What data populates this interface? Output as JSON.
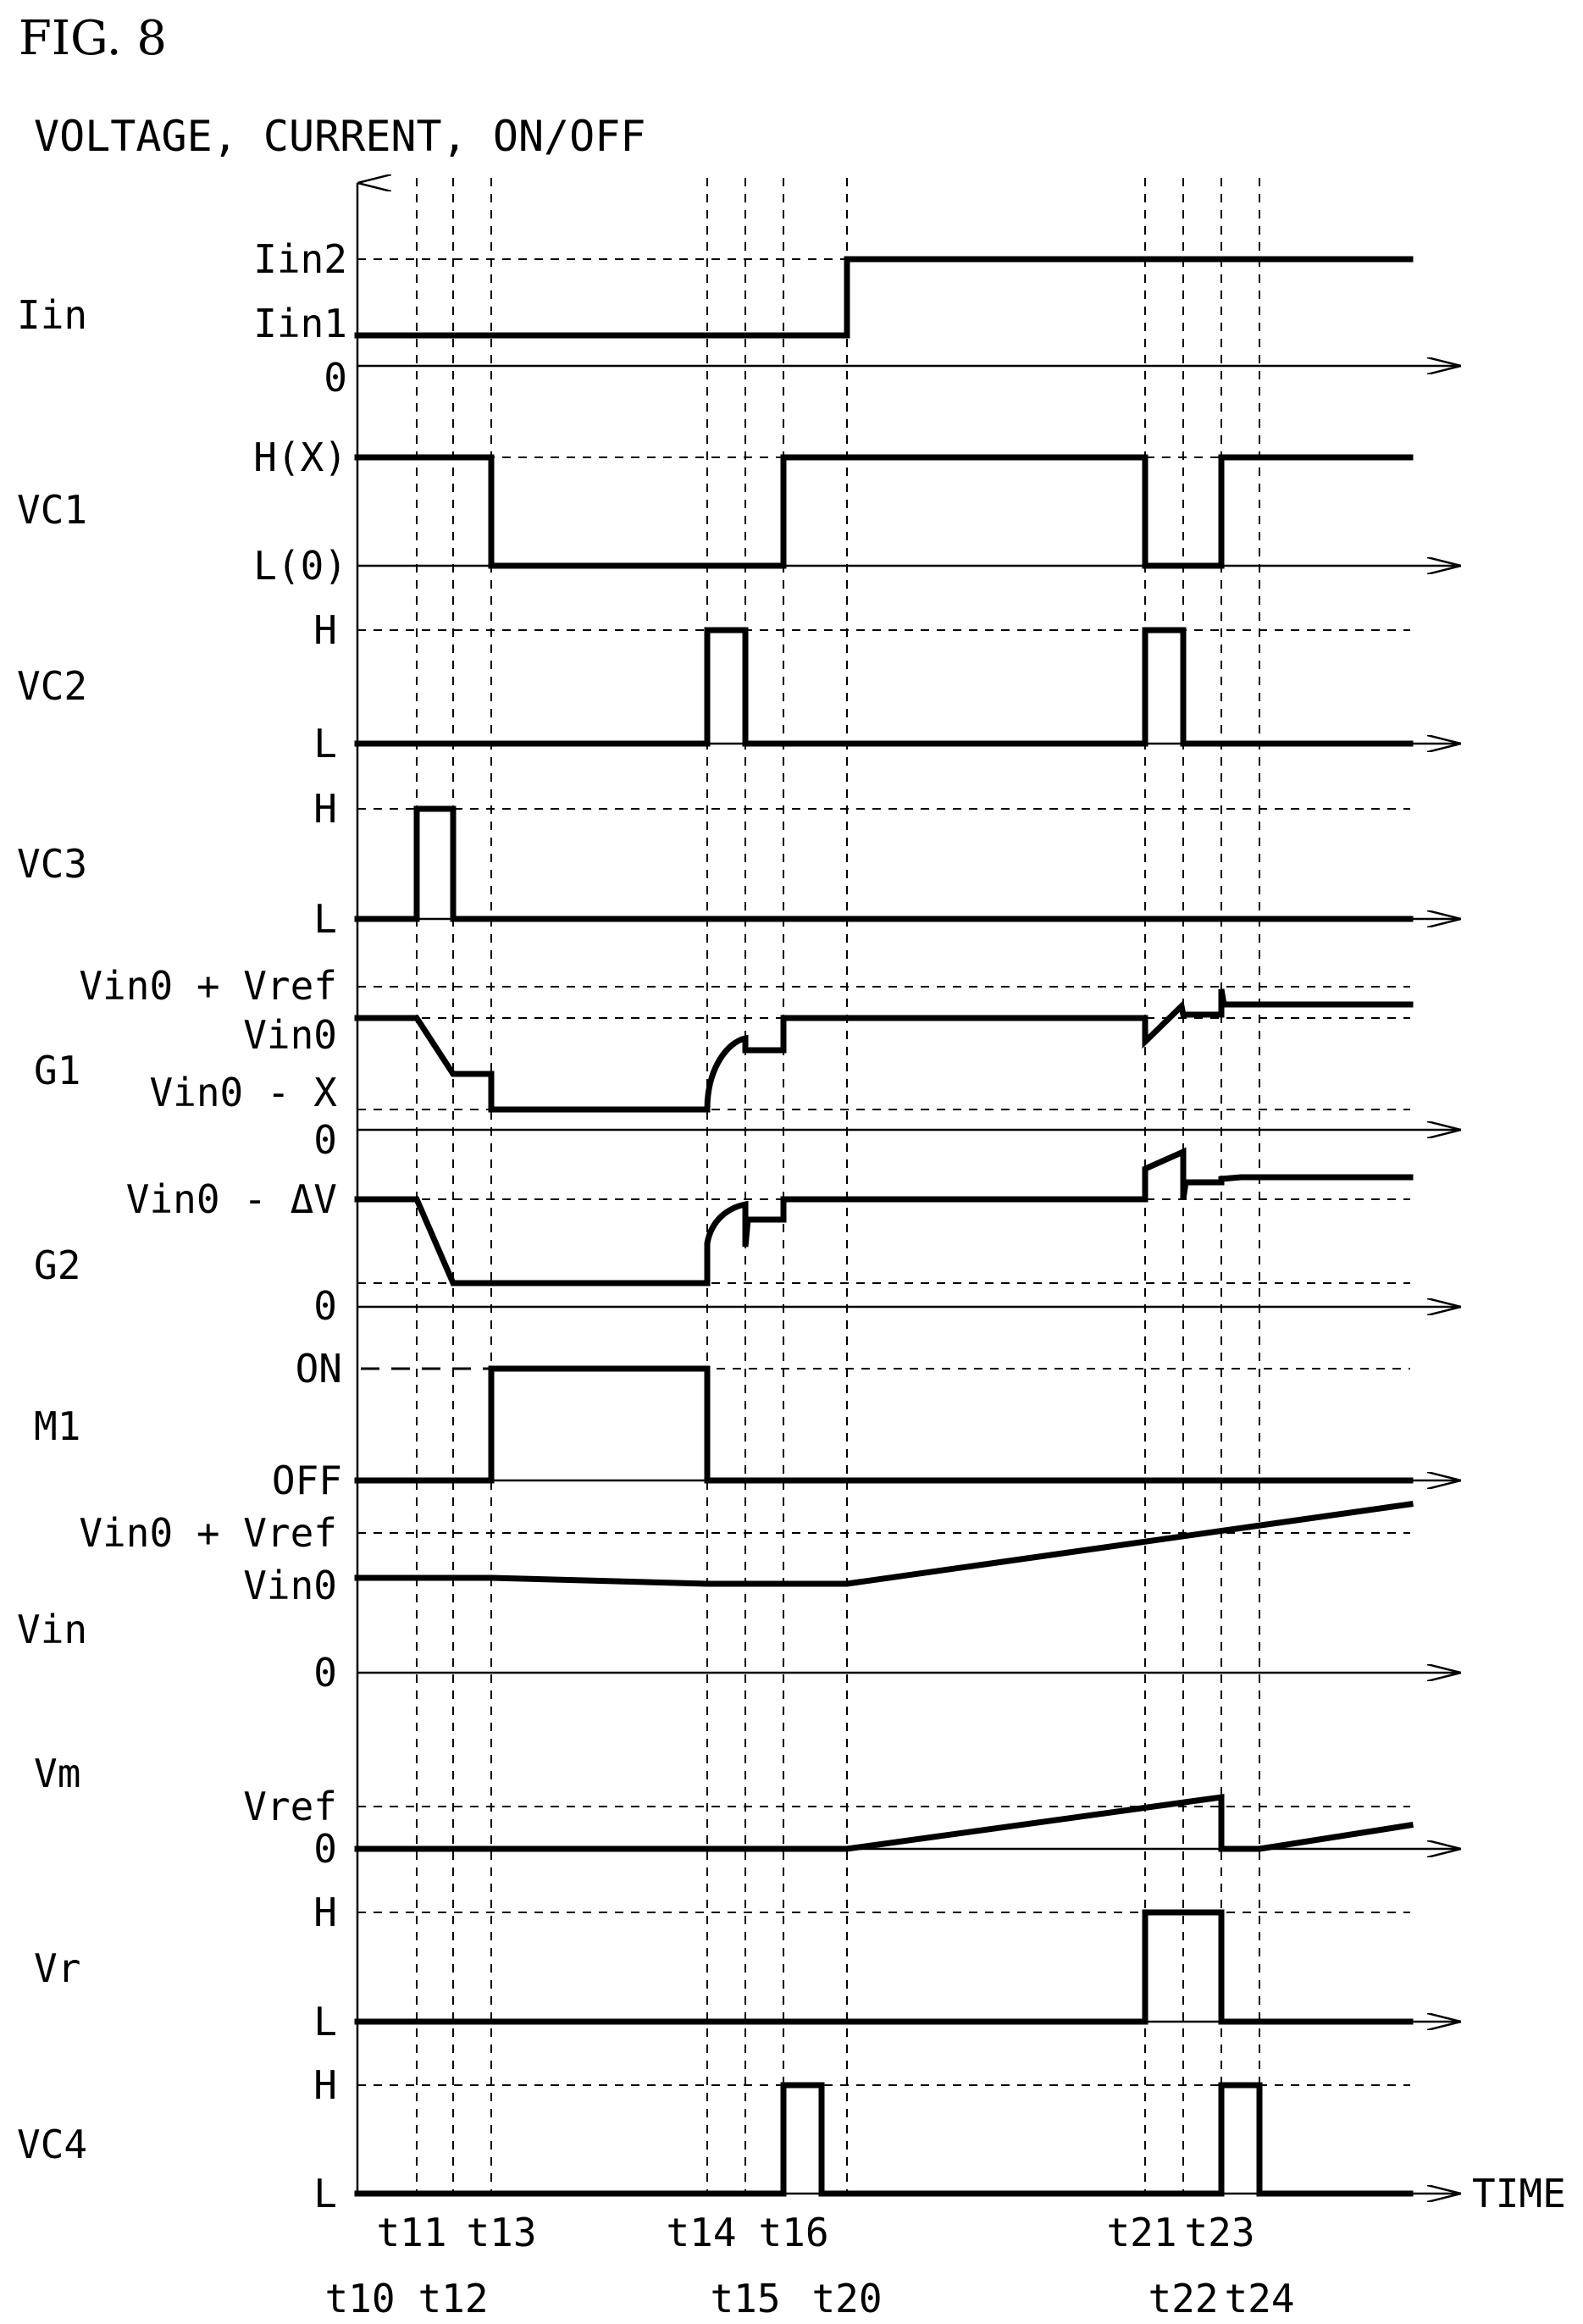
{
  "figure": {
    "title": "FIG. 8",
    "axis_header": "VOLTAGE, CURRENT, ON/OFF",
    "time_label": "TIME"
  },
  "time_marks": [
    {
      "name": "t10",
      "row": 2
    },
    {
      "name": "t11",
      "row": 1
    },
    {
      "name": "t12",
      "row": 2
    },
    {
      "name": "t13",
      "row": 1
    },
    {
      "name": "t14",
      "row": 1
    },
    {
      "name": "t15",
      "row": 2
    },
    {
      "name": "t16",
      "row": 1
    },
    {
      "name": "t20",
      "row": 2
    },
    {
      "name": "t21",
      "row": 1
    },
    {
      "name": "t22",
      "row": 2
    },
    {
      "name": "t23",
      "row": 1
    },
    {
      "name": "t24",
      "row": 2
    }
  ],
  "signals": [
    {
      "name": "Iin",
      "levels": [
        "Iin2",
        "Iin1",
        "0"
      ]
    },
    {
      "name": "VC1",
      "levels": [
        "H(X)",
        "L(0)"
      ]
    },
    {
      "name": "VC2",
      "levels": [
        "H",
        "L"
      ]
    },
    {
      "name": "VC3",
      "levels": [
        "H",
        "L"
      ]
    },
    {
      "name": "G1",
      "levels": [
        "Vin0 + Vref",
        "Vin0",
        "Vin0 - X",
        "0"
      ]
    },
    {
      "name": "G2",
      "levels": [
        "Vin0 - ΔV",
        "0"
      ]
    },
    {
      "name": "M1",
      "levels": [
        "ON",
        "OFF"
      ]
    },
    {
      "name": "Vin",
      "levels": [
        "Vin0 + Vref",
        "Vin0",
        "0"
      ]
    },
    {
      "name": "Vm",
      "levels": [
        "Vref",
        "0"
      ]
    },
    {
      "name": "Vr",
      "levels": [
        "H",
        "L"
      ]
    },
    {
      "name": "VC4",
      "levels": [
        "H",
        "L"
      ]
    }
  ]
}
